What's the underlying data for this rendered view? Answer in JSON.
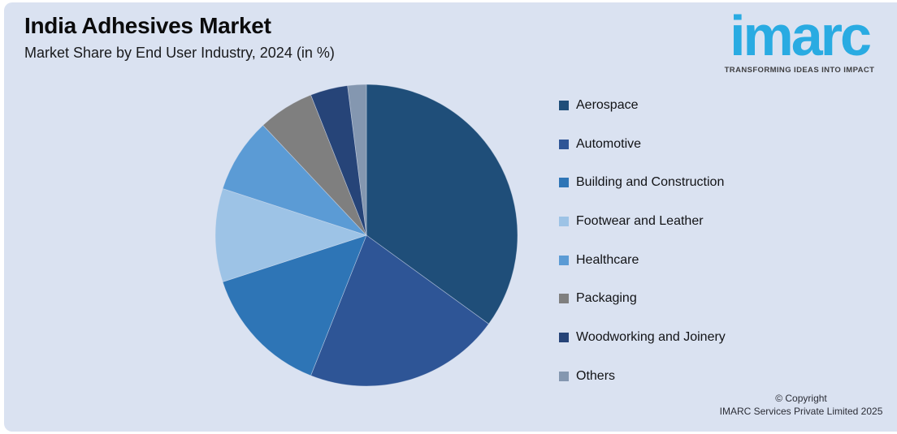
{
  "header": {
    "title": "India Adhesives Market",
    "subtitle": "Market Share by End User Industry, 2024 (in %)"
  },
  "logo": {
    "wordmark": "imarc",
    "tagline": "TRANSFORMING IDEAS INTO IMPACT",
    "brand_color": "#29abe2"
  },
  "chart_data": {
    "type": "pie",
    "title": "India Adhesives Market",
    "subtitle": "Market Share by End User Industry, 2024 (in %)",
    "unit": "%",
    "direction": "clockwise",
    "start_angle_deg": 0,
    "legend_position": "right",
    "categories": [
      "Aerospace",
      "Automotive",
      "Building and Construction",
      "Footwear and Leather",
      "Healthcare",
      "Packaging",
      "Woodworking and Joinery",
      "Others"
    ],
    "values": [
      35,
      21,
      14,
      10,
      8,
      6,
      4,
      2
    ],
    "colors": [
      "#1f4e79",
      "#2e5596",
      "#2e75b6",
      "#9dc3e6",
      "#5b9bd5",
      "#7f7f7f",
      "#264478",
      "#8497b0"
    ]
  },
  "footer": {
    "line1": "© Copyright",
    "line2": "IMARC Services Private Limited 2025"
  },
  "theme": {
    "background": "#dae2f1",
    "frame": "#ffffff"
  }
}
